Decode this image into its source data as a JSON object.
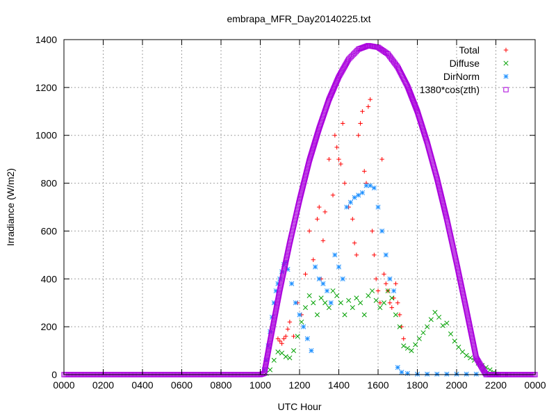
{
  "chart_data": {
    "type": "scatter",
    "title": "embrapa_MFR_Day20140225.txt",
    "xlabel": "UTC Hour",
    "ylabel": "Irradiance (W/m2)",
    "xlim": [
      0,
      24
    ],
    "ylim": [
      0,
      1400
    ],
    "grid": true,
    "legend_position": "top-right",
    "x_ticks": [
      "0000",
      "0200",
      "0400",
      "0600",
      "0800",
      "1000",
      "1200",
      "1400",
      "1600",
      "1800",
      "2000",
      "2200",
      "0000"
    ],
    "y_ticks": [
      "0",
      "200",
      "400",
      "600",
      "800",
      "1000",
      "1200",
      "1400"
    ],
    "series": [
      {
        "name": "Total",
        "color": "#ff0000",
        "marker": "plus",
        "x": [
          10.9,
          11.0,
          11.1,
          11.2,
          11.3,
          11.4,
          11.5,
          11.7,
          11.9,
          12.1,
          12.3,
          12.5,
          12.7,
          12.9,
          13.0,
          13.1,
          13.2,
          13.3,
          13.5,
          13.7,
          13.8,
          13.9,
          14.0,
          14.1,
          14.2,
          14.3,
          14.5,
          14.7,
          14.8,
          14.9,
          15.0,
          15.1,
          15.2,
          15.3,
          15.4,
          15.5,
          15.6,
          15.7,
          15.8,
          15.9,
          16.0,
          16.1,
          16.2,
          16.3,
          16.4,
          16.5,
          16.6,
          16.7,
          16.8,
          16.9,
          17.0,
          17.1,
          17.2,
          17.3
        ],
        "y": [
          150,
          140,
          130,
          150,
          160,
          190,
          220,
          160,
          300,
          250,
          420,
          600,
          480,
          650,
          700,
          400,
          560,
          680,
          900,
          750,
          1000,
          950,
          900,
          880,
          1050,
          800,
          700,
          650,
          550,
          500,
          1000,
          1050,
          1100,
          850,
          800,
          1120,
          1150,
          600,
          500,
          400,
          350,
          300,
          900,
          420,
          380,
          350,
          300,
          280,
          320,
          380,
          300,
          250,
          200,
          150
        ]
      },
      {
        "name": "Diffuse",
        "color": "#00a000",
        "marker": "cross",
        "x": [
          10.3,
          10.5,
          10.7,
          10.9,
          11.1,
          11.3,
          11.5,
          11.7,
          11.9,
          12.1,
          12.3,
          12.5,
          12.7,
          12.9,
          13.1,
          13.3,
          13.5,
          13.7,
          13.9,
          14.1,
          14.3,
          14.5,
          14.7,
          14.9,
          15.1,
          15.3,
          15.5,
          15.7,
          15.9,
          16.1,
          16.3,
          16.5,
          16.7,
          16.9,
          17.1,
          17.3,
          17.5,
          17.7,
          17.9,
          18.1,
          18.3,
          18.5,
          18.7,
          18.9,
          19.1,
          19.3,
          19.5,
          19.7,
          19.9,
          20.1,
          20.3,
          20.5,
          20.7,
          20.9,
          21.1,
          21.3,
          21.5,
          21.7,
          21.9,
          22.0
        ],
        "y": [
          5,
          20,
          60,
          95,
          90,
          75,
          70,
          100,
          160,
          220,
          280,
          330,
          300,
          250,
          320,
          300,
          280,
          350,
          330,
          300,
          250,
          310,
          280,
          320,
          300,
          250,
          330,
          350,
          310,
          280,
          300,
          350,
          320,
          250,
          200,
          120,
          110,
          100,
          125,
          150,
          175,
          200,
          230,
          260,
          240,
          205,
          215,
          170,
          140,
          115,
          95,
          80,
          70,
          60,
          48,
          38,
          30,
          20,
          10,
          2
        ]
      },
      {
        "name": "DirNorm",
        "color": "#1e90ff",
        "marker": "star",
        "x": [
          10.2,
          10.3,
          10.4,
          10.5,
          10.6,
          10.7,
          10.8,
          10.9,
          11.0,
          11.1,
          11.2,
          11.3,
          11.4,
          11.6,
          11.8,
          12.0,
          12.2,
          12.4,
          12.6,
          12.8,
          13.0,
          13.2,
          13.4,
          13.6,
          13.8,
          14.0,
          14.2,
          14.4,
          14.6,
          14.8,
          15.0,
          15.2,
          15.4,
          15.6,
          15.8,
          16.0,
          16.2,
          16.4,
          16.6,
          16.8,
          17.0,
          17.2,
          17.5,
          18.0,
          18.5,
          19.0,
          19.5,
          20.0,
          20.5,
          21.0,
          21.5,
          22.0
        ],
        "y": [
          20,
          60,
          120,
          180,
          240,
          300,
          350,
          380,
          400,
          430,
          460,
          470,
          440,
          380,
          300,
          250,
          200,
          150,
          100,
          450,
          400,
          380,
          350,
          300,
          500,
          450,
          400,
          700,
          720,
          740,
          750,
          760,
          790,
          790,
          780,
          700,
          600,
          500,
          400,
          350,
          30,
          10,
          5,
          2,
          2,
          2,
          2,
          2,
          2,
          2,
          2,
          2
        ]
      },
      {
        "name": "1380*cos(zth)",
        "color": "#aa00dd",
        "marker": "square",
        "x": [
          0,
          2,
          4,
          6,
          8,
          10,
          10.2,
          10.5,
          11,
          11.5,
          12,
          12.5,
          13,
          13.5,
          14,
          14.5,
          15,
          15.5,
          16,
          16.5,
          17,
          17.5,
          18,
          18.5,
          19,
          19.5,
          20,
          20.5,
          21,
          21.5,
          22,
          22.2,
          22.5,
          24
        ],
        "y": [
          0,
          0,
          0,
          0,
          0,
          0,
          5,
          140,
          355,
          550,
          730,
          895,
          1030,
          1150,
          1245,
          1318,
          1360,
          1375,
          1368,
          1340,
          1285,
          1205,
          1100,
          970,
          820,
          650,
          465,
          270,
          70,
          0,
          0,
          0,
          0,
          0
        ]
      }
    ]
  }
}
